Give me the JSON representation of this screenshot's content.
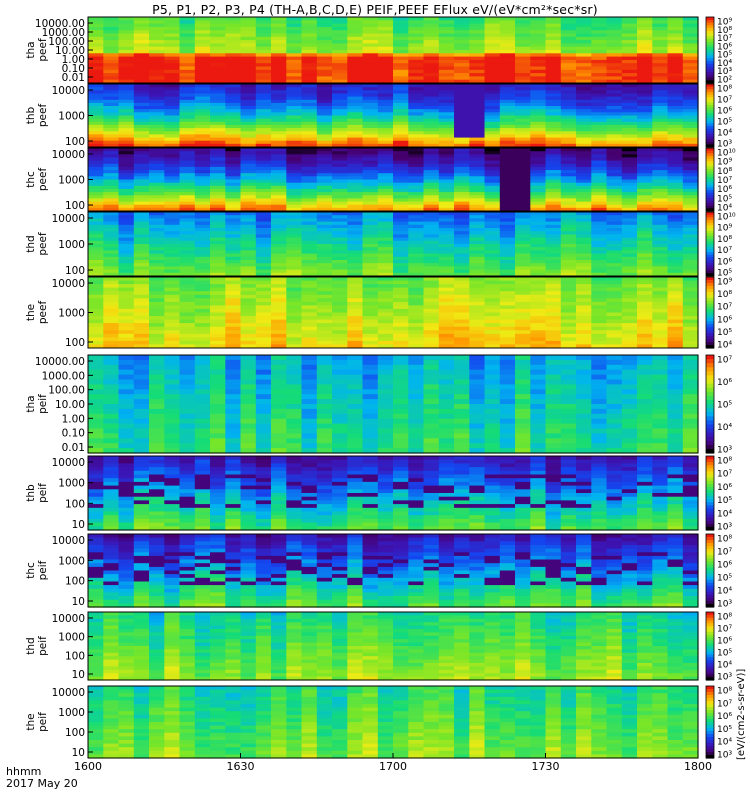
{
  "chart_data": {
    "type": "heatmap",
    "title": "P5, P1, P2, P3, P4 (TH-A,B,C,D,E) PEIF,PEEF EFlux eV/(eV*cm²*sec*sr)",
    "x_axis": {
      "ticks": [
        "1600",
        "1630",
        "1700",
        "1730",
        "1800"
      ],
      "time_format": "hhmm",
      "date": "2017 May 20",
      "range": [
        "16:00",
        "18:00"
      ]
    },
    "colorbar_label": "[eV/(cm2-s-sr-eV)]",
    "colormap": "rainbow",
    "panels": [
      {
        "probe": "tha",
        "label1": "tha",
        "label2": "peef",
        "species": "electron",
        "yticks": [
          "10000.00",
          "1000.00",
          "100.00",
          "10.00",
          "1.00",
          "0.10",
          "0.01"
        ],
        "cbar_ticks": [
          "10⁹",
          "10⁸",
          "10⁷",
          "10⁶",
          "10⁵",
          "10⁴",
          "10³",
          "10²"
        ]
      },
      {
        "probe": "thb",
        "label1": "thb",
        "label2": "peef",
        "species": "electron",
        "yticks": [
          "10000",
          "1000",
          "100"
        ],
        "cbar_ticks": [
          "10⁸",
          "10⁷",
          "10⁶",
          "10⁵",
          "10⁴",
          "10³"
        ]
      },
      {
        "probe": "thc",
        "label1": "thc",
        "label2": "peef",
        "species": "electron",
        "yticks": [
          "10000",
          "1000",
          "100"
        ],
        "cbar_ticks": [
          "10¹⁰",
          "10⁹",
          "10⁸",
          "10⁷",
          "10⁶",
          "10⁵",
          "10⁴"
        ]
      },
      {
        "probe": "thd",
        "label1": "thd",
        "label2": "peef",
        "species": "electron",
        "yticks": [
          "10000",
          "1000",
          "100"
        ],
        "cbar_ticks": [
          "10¹⁰",
          "10⁹",
          "10⁸",
          "10⁷",
          "10⁶",
          "10⁵"
        ]
      },
      {
        "probe": "the",
        "label1": "the",
        "label2": "peef",
        "species": "electron",
        "yticks": [
          "10000",
          "1000",
          "100"
        ],
        "cbar_ticks": [
          "10⁹",
          "10⁸",
          "10⁷",
          "10⁶",
          "10⁵",
          "10⁴"
        ]
      },
      {
        "probe": "tha",
        "label1": "tha",
        "label2": "peif",
        "species": "ion",
        "yticks": [
          "10000.00",
          "1000.00",
          "100.00",
          "10.00",
          "1.00",
          "0.10",
          "0.01"
        ],
        "cbar_ticks": [
          "10⁷",
          "10⁶",
          "10⁵",
          "10⁴",
          "10³"
        ]
      },
      {
        "probe": "thb",
        "label1": "thb",
        "label2": "peif",
        "species": "ion",
        "yticks": [
          "10000",
          "1000",
          "100",
          "10"
        ],
        "cbar_ticks": [
          "10⁸",
          "10⁷",
          "10⁶",
          "10⁵",
          "10⁴",
          "10³"
        ]
      },
      {
        "probe": "thc",
        "label1": "thc",
        "label2": "peif",
        "species": "ion",
        "yticks": [
          "10000",
          "1000",
          "100",
          "10"
        ],
        "cbar_ticks": [
          "10⁸",
          "10⁷",
          "10⁶",
          "10⁵",
          "10⁴",
          "10³"
        ]
      },
      {
        "probe": "thd",
        "label1": "thd",
        "label2": "peif",
        "species": "ion",
        "yticks": [
          "10000",
          "1000",
          "100",
          "10"
        ],
        "cbar_ticks": [
          "10⁸",
          "10⁷",
          "10⁶",
          "10⁵",
          "10⁴",
          "10³"
        ]
      },
      {
        "probe": "the",
        "label1": "the",
        "label2": "peif",
        "species": "ion",
        "yticks": [
          "10000",
          "1000",
          "100",
          "10"
        ],
        "cbar_ticks": [
          "10⁸",
          "10⁷",
          "10⁶",
          "10⁵",
          "10⁴",
          "10³"
        ]
      }
    ]
  }
}
